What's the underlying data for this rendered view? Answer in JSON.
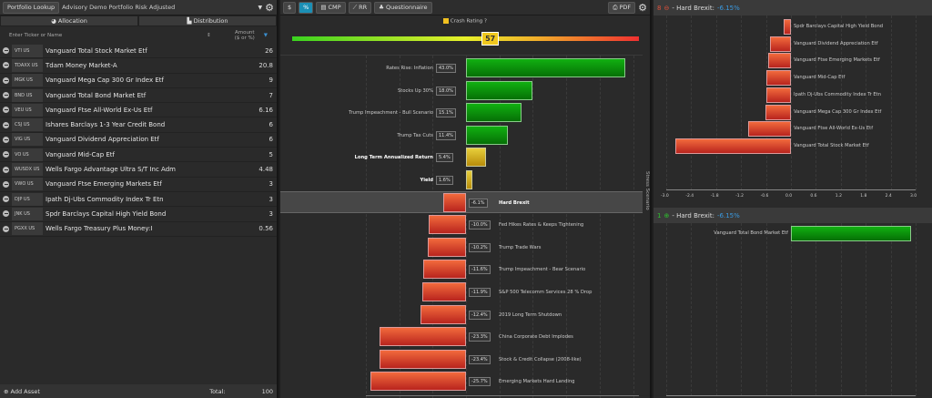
{
  "left": {
    "lookup_label": "Portfolio Lookup",
    "portfolio_name": "Advisory Demo Portfolio Risk Adjusted",
    "tabs": [
      "Allocation",
      "Distribution"
    ],
    "col_ticker": "Enter Ticker or Name",
    "col_amount_1": "Amount",
    "col_amount_2": "($ or %)",
    "holdings": [
      {
        "ticker": "VTI US",
        "name": "Vanguard Total Stock Market Etf",
        "amount": "26"
      },
      {
        "ticker": "TDAXX US",
        "name": "Tdam Money Market-A",
        "amount": "20.8"
      },
      {
        "ticker": "MGK US",
        "name": "Vanguard Mega Cap 300 Gr Index Etf",
        "amount": "9"
      },
      {
        "ticker": "BND US",
        "name": "Vanguard Total Bond Market Etf",
        "amount": "7"
      },
      {
        "ticker": "VEU US",
        "name": "Vanguard Ftse All-World Ex-Us Etf",
        "amount": "6.16"
      },
      {
        "ticker": "CSJ US",
        "name": "Ishares Barclays 1-3 Year Credit Bond",
        "amount": "6"
      },
      {
        "ticker": "VIG US",
        "name": "Vanguard Dividend Appreciation Etf",
        "amount": "6"
      },
      {
        "ticker": "VO US",
        "name": "Vanguard Mid-Cap Etf",
        "amount": "5"
      },
      {
        "ticker": "WUSDX US",
        "name": "Wells Fargo Advantage Ultra S/T Inc Adm",
        "amount": "4.48"
      },
      {
        "ticker": "VWO US",
        "name": "Vanguard Ftse Emerging Markets Etf",
        "amount": "3"
      },
      {
        "ticker": "DJP US",
        "name": "Ipath Dj-Ubs Commodity Index Tr Etn",
        "amount": "3"
      },
      {
        "ticker": "JNK US",
        "name": "Spdr Barclays Capital High Yield Bond",
        "amount": "3"
      },
      {
        "ticker": "PGXX US",
        "name": "Wells Fargo Treasury Plus Money:I",
        "amount": "0.56"
      }
    ],
    "add_asset": "Add Asset",
    "total_label": "Total:",
    "total_value": "100"
  },
  "mid": {
    "toolbar": {
      "dollar": "$",
      "percent": "%",
      "cmp": "CMP",
      "rr": "RR",
      "questionnaire": "Questionnaire",
      "pdf": "PDF"
    },
    "crash_label": "Crash Rating",
    "crash_value": "57",
    "crash_fraction": 0.57,
    "side_label": "Stress Scenario",
    "colors": {
      "green": "#0a9a0a",
      "red": "#d9402a",
      "yellow": "#d4b020"
    }
  },
  "chart_data": [
    {
      "type": "bar",
      "title": "Stress Scenario",
      "orientation": "horizontal",
      "xlim": [
        -30,
        50
      ],
      "categories": [
        "Rates Rise: Inflation",
        "Stocks Up 30%",
        "Trump Impeachment - Bull Scenario",
        "Trump Tax Cuts",
        "Long Term Annualized Return",
        "Yield",
        "Hard Brexit",
        "Fed Hikes Rates & Keeps Tightening",
        "Trump Trade Wars",
        "Trump Impeachment - Bear Scenario",
        "S&P 500 Telecomm Services 28 % Drop",
        "2019 Long Term Shutdown",
        "China Corporate Debt Implodes",
        "Stock & Credit Collapse (2008-like)",
        "Emerging Markets Hard Landing"
      ],
      "values": [
        43.0,
        18.0,
        15.1,
        11.4,
        5.4,
        1.6,
        -6.1,
        -10.0,
        -10.2,
        -11.6,
        -11.9,
        -12.4,
        -23.3,
        -23.4,
        -25.7
      ],
      "labels": [
        "43.0%",
        "18.0%",
        "15.1%",
        "11.4%",
        "5.4%",
        "1.6%",
        "-6.1%",
        "-10.0%",
        "-10.2%",
        "-11.6%",
        "-11.9%",
        "-12.4%",
        "-23.3%",
        "-23.4%",
        "-25.7%"
      ],
      "kinds": [
        "g",
        "g",
        "g",
        "g",
        "y",
        "y",
        "r",
        "r",
        "r",
        "r",
        "r",
        "r",
        "r",
        "r",
        "r"
      ],
      "selected": "Hard Brexit"
    },
    {
      "type": "bar",
      "orientation": "horizontal",
      "header_count": "8",
      "header_text": "- Hard Brexit:",
      "header_value": "-6.15%",
      "categories": [
        "Spdr Barclays Capital High Yield Bond",
        "Vanguard Dividend Appreciation Etf",
        "Vanguard Ftse Emerging Markets Etf",
        "Vanguard Mid-Cap Etf",
        "Ipath Dj-Ubs Commodity Index Tr Etn",
        "Vanguard Mega Cap 300 Gr Index Etf",
        "Vanguard Ftse All-World Ex-Us Etf",
        "Vanguard Total Stock Market Etf"
      ],
      "values": [
        -0.18,
        -0.5,
        -0.54,
        -0.6,
        -0.6,
        -0.61,
        -1.03,
        -2.78
      ],
      "xlim": [
        -3,
        3
      ],
      "ticks": [
        "-3.0",
        "-2.4",
        "-1.8",
        "-1.2",
        "-0.6",
        "0.0",
        "0.6",
        "1.2",
        "1.8",
        "2.4",
        "3.0"
      ]
    },
    {
      "type": "bar",
      "orientation": "horizontal",
      "header_count": "1",
      "header_text": "- Hard Brexit:",
      "header_value": "-6.15%",
      "categories": [
        "Vanguard Total Bond Market Etf"
      ],
      "values": [
        2.9
      ],
      "xlim": [
        -3,
        3
      ]
    }
  ]
}
